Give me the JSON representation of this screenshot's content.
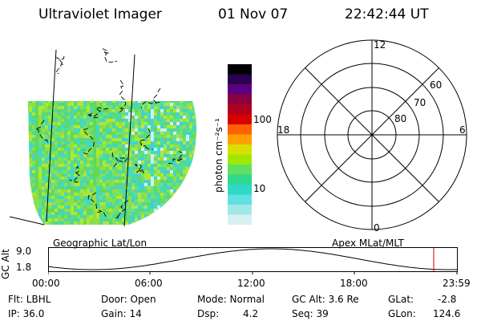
{
  "header": {
    "instrument": "Ultraviolet Imager",
    "date": "01 Nov 07",
    "time": "22:42:44 UT"
  },
  "colorbar": {
    "unit_label": "photon cm⁻²s⁻¹",
    "scale": "log",
    "ticks": [
      "100",
      "10"
    ],
    "colors": [
      "#000000",
      "#2a0050",
      "#5a0080",
      "#8a0040",
      "#b00020",
      "#d80000",
      "#ff6000",
      "#ffa000",
      "#d8e000",
      "#a0e800",
      "#60e060",
      "#30d890",
      "#30d8c8",
      "#60e0e0",
      "#a0e8e8",
      "#d8f0f0"
    ]
  },
  "map": {
    "left_label": "Geographic Lat/Lon",
    "right_label": "Apex MLat/MLT",
    "polar_mlt_labels": {
      "top": "12",
      "left": "18",
      "right": "6",
      "bottom": "0"
    },
    "polar_mlat_labels": [
      "60",
      "70",
      "80"
    ]
  },
  "altitude_plot": {
    "ylabel": "GC Alt",
    "yticks": [
      "9.0",
      "1.8"
    ],
    "xticks": [
      "00:00",
      "06:00",
      "12:00",
      "18:00",
      "23:59"
    ],
    "marker_color": "#d00000"
  },
  "info": {
    "flt": "Flt: LBHL",
    "ip": "IP: 36.0",
    "door": "Door: Open",
    "gain": "Gain: 14",
    "mode": "Mode: Normal",
    "dsp_label": "Dsp:",
    "dsp_value": "4.2",
    "gc_alt": "GC Alt: 3.6 Re",
    "seq": "Seq: 39",
    "glat_label": "GLat:",
    "glat_value": "-2.8",
    "glon_label": "GLon:",
    "glon_value": "124.6"
  }
}
